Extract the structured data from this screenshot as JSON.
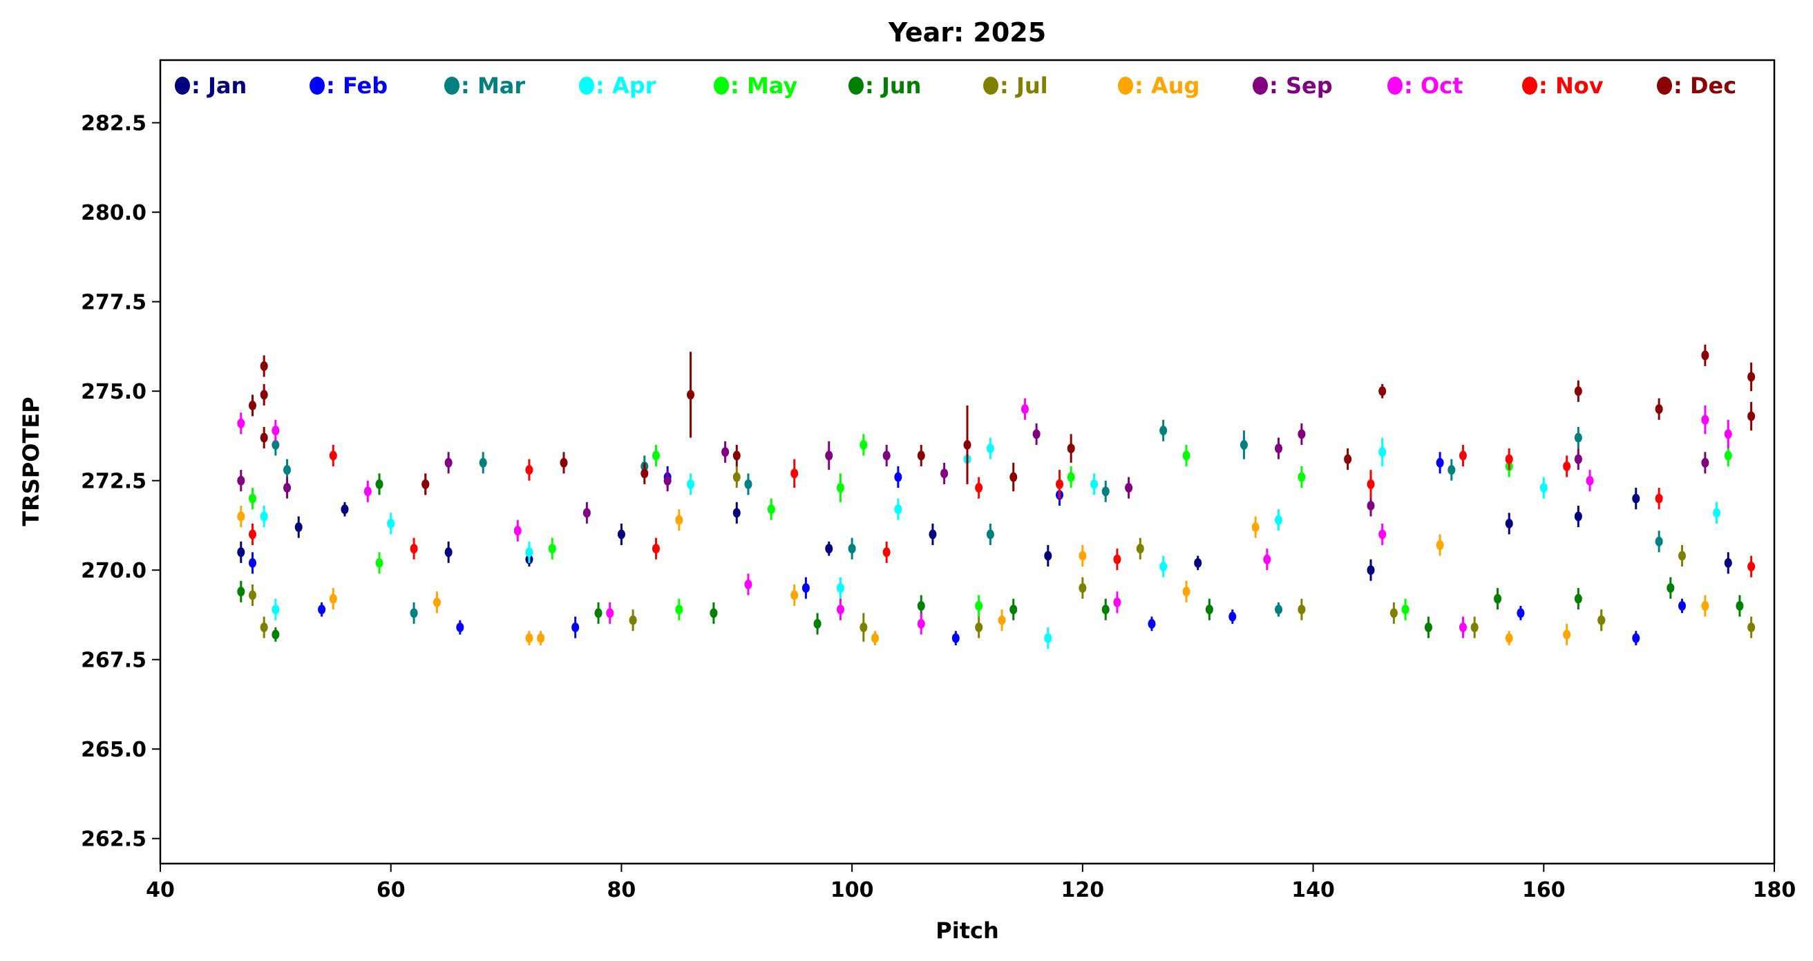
{
  "chart_data": {
    "type": "scatter",
    "title": "Year: 2025",
    "xlabel": "Pitch",
    "ylabel": "TRSPOTEP",
    "xlim": [
      40,
      180
    ],
    "ylim": [
      261.8,
      284.25
    ],
    "xticks": [
      40,
      60,
      80,
      100,
      120,
      140,
      160,
      180
    ],
    "xtick_labels": [
      "40",
      "60",
      "80",
      "100",
      "120",
      "140",
      "160",
      "180"
    ],
    "yticks": [
      262.5,
      265.0,
      267.5,
      270.0,
      272.5,
      275.0,
      277.5,
      280.0,
      282.5
    ],
    "ytick_labels": [
      "262.5",
      "265.0",
      "267.5",
      "270.0",
      "272.5",
      "275.0",
      "277.5",
      "280.0",
      "282.5"
    ],
    "grid": false,
    "legend_placement": "top, single row inside axes",
    "point_format": "[pitch, value, error]",
    "series": [
      {
        "name": "Jan",
        "label": ": Jan",
        "color": "#000080",
        "points": [
          [
            47,
            270.5,
            0.3
          ],
          [
            52,
            271.2,
            0.3
          ],
          [
            56,
            271.7,
            0.2
          ],
          [
            65,
            270.5,
            0.3
          ],
          [
            72,
            270.3,
            0.2
          ],
          [
            80,
            271.0,
            0.3
          ],
          [
            90,
            271.6,
            0.3
          ],
          [
            98,
            270.6,
            0.2
          ],
          [
            107,
            271.0,
            0.3
          ],
          [
            117,
            270.4,
            0.3
          ],
          [
            130,
            270.2,
            0.2
          ],
          [
            145,
            270.0,
            0.3
          ],
          [
            157,
            271.3,
            0.3
          ],
          [
            163,
            271.5,
            0.3
          ],
          [
            168,
            272.0,
            0.3
          ],
          [
            176,
            270.2,
            0.3
          ]
        ]
      },
      {
        "name": "Feb",
        "label": ": Feb",
        "color": "#0000ff",
        "points": [
          [
            48,
            270.2,
            0.3
          ],
          [
            54,
            268.9,
            0.2
          ],
          [
            66,
            268.4,
            0.2
          ],
          [
            76,
            268.4,
            0.3
          ],
          [
            84,
            272.6,
            0.3
          ],
          [
            96,
            269.5,
            0.3
          ],
          [
            104,
            272.6,
            0.3
          ],
          [
            109,
            268.1,
            0.2
          ],
          [
            118,
            272.1,
            0.3
          ],
          [
            126,
            268.5,
            0.2
          ],
          [
            133,
            268.7,
            0.2
          ],
          [
            151,
            273.0,
            0.3
          ],
          [
            158,
            268.8,
            0.2
          ],
          [
            168,
            268.1,
            0.2
          ],
          [
            172,
            269.0,
            0.2
          ]
        ]
      },
      {
        "name": "Mar",
        "label": ": Mar",
        "color": "#008080",
        "points": [
          [
            50,
            273.5,
            0.3
          ],
          [
            51,
            272.8,
            0.3
          ],
          [
            62,
            268.8,
            0.3
          ],
          [
            68,
            273.0,
            0.3
          ],
          [
            82,
            272.9,
            0.3
          ],
          [
            91,
            272.4,
            0.3
          ],
          [
            100,
            270.6,
            0.3
          ],
          [
            112,
            271.0,
            0.3
          ],
          [
            122,
            272.2,
            0.3
          ],
          [
            127,
            273.9,
            0.3
          ],
          [
            134,
            273.5,
            0.4
          ],
          [
            137,
            268.9,
            0.2
          ],
          [
            152,
            272.8,
            0.3
          ],
          [
            163,
            273.7,
            0.3
          ],
          [
            170,
            270.8,
            0.3
          ]
        ]
      },
      {
        "name": "Apr",
        "label": ": Apr",
        "color": "#00ffff",
        "points": [
          [
            49,
            271.5,
            0.3
          ],
          [
            50,
            268.9,
            0.3
          ],
          [
            60,
            271.3,
            0.3
          ],
          [
            72,
            270.5,
            0.3
          ],
          [
            86,
            272.4,
            0.3
          ],
          [
            99,
            269.5,
            0.3
          ],
          [
            104,
            271.7,
            0.3
          ],
          [
            110,
            273.1,
            0.4
          ],
          [
            112,
            273.4,
            0.3
          ],
          [
            117,
            268.1,
            0.3
          ],
          [
            121,
            272.4,
            0.3
          ],
          [
            127,
            270.1,
            0.3
          ],
          [
            137,
            271.4,
            0.3
          ],
          [
            146,
            273.3,
            0.4
          ],
          [
            160,
            272.3,
            0.3
          ],
          [
            175,
            271.6,
            0.3
          ]
        ]
      },
      {
        "name": "May",
        "label": ": May",
        "color": "#00ff00",
        "points": [
          [
            48,
            272.0,
            0.3
          ],
          [
            59,
            270.2,
            0.3
          ],
          [
            74,
            270.6,
            0.3
          ],
          [
            83,
            273.2,
            0.3
          ],
          [
            85,
            268.9,
            0.3
          ],
          [
            93,
            271.7,
            0.3
          ],
          [
            99,
            272.3,
            0.4
          ],
          [
            101,
            273.5,
            0.3
          ],
          [
            111,
            269.0,
            0.3
          ],
          [
            119,
            272.6,
            0.3
          ],
          [
            129,
            273.2,
            0.3
          ],
          [
            139,
            272.6,
            0.3
          ],
          [
            148,
            268.9,
            0.3
          ],
          [
            157,
            272.9,
            0.3
          ],
          [
            165,
            268.6,
            0.3
          ],
          [
            176,
            273.2,
            0.3
          ]
        ]
      },
      {
        "name": "Jun",
        "label": ": Jun",
        "color": "#008000",
        "points": [
          [
            47,
            269.4,
            0.3
          ],
          [
            50,
            268.2,
            0.2
          ],
          [
            59,
            272.4,
            0.3
          ],
          [
            78,
            268.8,
            0.3
          ],
          [
            88,
            268.8,
            0.3
          ],
          [
            97,
            268.5,
            0.3
          ],
          [
            106,
            269.0,
            0.3
          ],
          [
            114,
            268.9,
            0.3
          ],
          [
            122,
            268.9,
            0.3
          ],
          [
            131,
            268.9,
            0.3
          ],
          [
            150,
            268.4,
            0.3
          ],
          [
            156,
            269.2,
            0.3
          ],
          [
            163,
            269.2,
            0.3
          ],
          [
            171,
            269.5,
            0.3
          ],
          [
            177,
            269.0,
            0.3
          ]
        ]
      },
      {
        "name": "Jul",
        "label": ": Jul",
        "color": "#808000",
        "points": [
          [
            48,
            269.3,
            0.3
          ],
          [
            49,
            268.4,
            0.3
          ],
          [
            63,
            272.4,
            0.3
          ],
          [
            81,
            268.6,
            0.3
          ],
          [
            90,
            272.6,
            0.3
          ],
          [
            101,
            268.4,
            0.4
          ],
          [
            111,
            268.4,
            0.3
          ],
          [
            120,
            269.5,
            0.3
          ],
          [
            125,
            270.6,
            0.3
          ],
          [
            139,
            268.9,
            0.3
          ],
          [
            147,
            268.8,
            0.3
          ],
          [
            154,
            268.4,
            0.3
          ],
          [
            165,
            268.6,
            0.3
          ],
          [
            172,
            270.4,
            0.3
          ],
          [
            178,
            268.4,
            0.3
          ]
        ]
      },
      {
        "name": "Aug",
        "label": ": Aug",
        "color": "#ffa500",
        "points": [
          [
            47,
            271.5,
            0.3
          ],
          [
            55,
            269.2,
            0.3
          ],
          [
            64,
            269.1,
            0.3
          ],
          [
            72,
            268.1,
            0.2
          ],
          [
            73,
            268.1,
            0.2
          ],
          [
            85,
            271.4,
            0.3
          ],
          [
            95,
            269.3,
            0.3
          ],
          [
            102,
            268.1,
            0.2
          ],
          [
            113,
            268.6,
            0.3
          ],
          [
            120,
            270.4,
            0.3
          ],
          [
            129,
            269.4,
            0.3
          ],
          [
            135,
            271.2,
            0.3
          ],
          [
            151,
            270.7,
            0.3
          ],
          [
            157,
            268.1,
            0.2
          ],
          [
            162,
            268.2,
            0.3
          ],
          [
            174,
            269.0,
            0.3
          ]
        ]
      },
      {
        "name": "Sep",
        "label": ": Sep",
        "color": "#800080",
        "points": [
          [
            47,
            272.5,
            0.3
          ],
          [
            51,
            272.3,
            0.3
          ],
          [
            65,
            273.0,
            0.3
          ],
          [
            77,
            271.6,
            0.3
          ],
          [
            84,
            272.5,
            0.3
          ],
          [
            89,
            273.3,
            0.3
          ],
          [
            98,
            273.2,
            0.4
          ],
          [
            103,
            273.2,
            0.3
          ],
          [
            108,
            272.7,
            0.3
          ],
          [
            116,
            273.8,
            0.3
          ],
          [
            124,
            272.3,
            0.3
          ],
          [
            137,
            273.4,
            0.3
          ],
          [
            139,
            273.8,
            0.3
          ],
          [
            145,
            271.8,
            0.3
          ],
          [
            163,
            273.1,
            0.3
          ],
          [
            174,
            273.0,
            0.3
          ]
        ]
      },
      {
        "name": "Oct",
        "label": ": Oct",
        "color": "#ff00ff",
        "points": [
          [
            47,
            274.1,
            0.3
          ],
          [
            50,
            273.9,
            0.3
          ],
          [
            58,
            272.2,
            0.3
          ],
          [
            71,
            271.1,
            0.3
          ],
          [
            79,
            268.8,
            0.3
          ],
          [
            91,
            269.6,
            0.3
          ],
          [
            99,
            268.9,
            0.3
          ],
          [
            106,
            268.5,
            0.3
          ],
          [
            115,
            274.5,
            0.3
          ],
          [
            123,
            269.1,
            0.3
          ],
          [
            136,
            270.3,
            0.3
          ],
          [
            146,
            271.0,
            0.3
          ],
          [
            153,
            268.4,
            0.3
          ],
          [
            164,
            272.5,
            0.3
          ],
          [
            174,
            274.2,
            0.4
          ],
          [
            176,
            273.8,
            0.4
          ]
        ]
      },
      {
        "name": "Nov",
        "label": ": Nov",
        "color": "#ff0000",
        "points": [
          [
            48,
            271.0,
            0.3
          ],
          [
            55,
            273.2,
            0.3
          ],
          [
            62,
            270.6,
            0.3
          ],
          [
            72,
            272.8,
            0.3
          ],
          [
            83,
            270.6,
            0.3
          ],
          [
            95,
            272.7,
            0.4
          ],
          [
            103,
            270.5,
            0.3
          ],
          [
            111,
            272.3,
            0.3
          ],
          [
            118,
            272.4,
            0.4
          ],
          [
            123,
            270.3,
            0.3
          ],
          [
            145,
            272.4,
            0.4
          ],
          [
            153,
            273.2,
            0.3
          ],
          [
            157,
            273.1,
            0.3
          ],
          [
            162,
            272.9,
            0.3
          ],
          [
            170,
            272.0,
            0.3
          ],
          [
            178,
            270.1,
            0.3
          ]
        ]
      },
      {
        "name": "Dec",
        "label": ": Dec",
        "color": "#8b0000",
        "points": [
          [
            48,
            274.6,
            0.3
          ],
          [
            49,
            274.9,
            0.3
          ],
          [
            49,
            275.7,
            0.3
          ],
          [
            49,
            273.7,
            0.3
          ],
          [
            63,
            272.4,
            0.3
          ],
          [
            75,
            273.0,
            0.3
          ],
          [
            82,
            272.7,
            0.3
          ],
          [
            86,
            274.9,
            1.2
          ],
          [
            90,
            273.2,
            0.3
          ],
          [
            106,
            273.2,
            0.3
          ],
          [
            110,
            273.5,
            1.1
          ],
          [
            114,
            272.6,
            0.4
          ],
          [
            119,
            273.4,
            0.4
          ],
          [
            143,
            273.1,
            0.3
          ],
          [
            146,
            275.0,
            0.2
          ],
          [
            163,
            275.0,
            0.3
          ],
          [
            170,
            274.5,
            0.3
          ],
          [
            174,
            276.0,
            0.3
          ],
          [
            178,
            275.4,
            0.4
          ],
          [
            178,
            274.3,
            0.4
          ]
        ]
      }
    ]
  }
}
